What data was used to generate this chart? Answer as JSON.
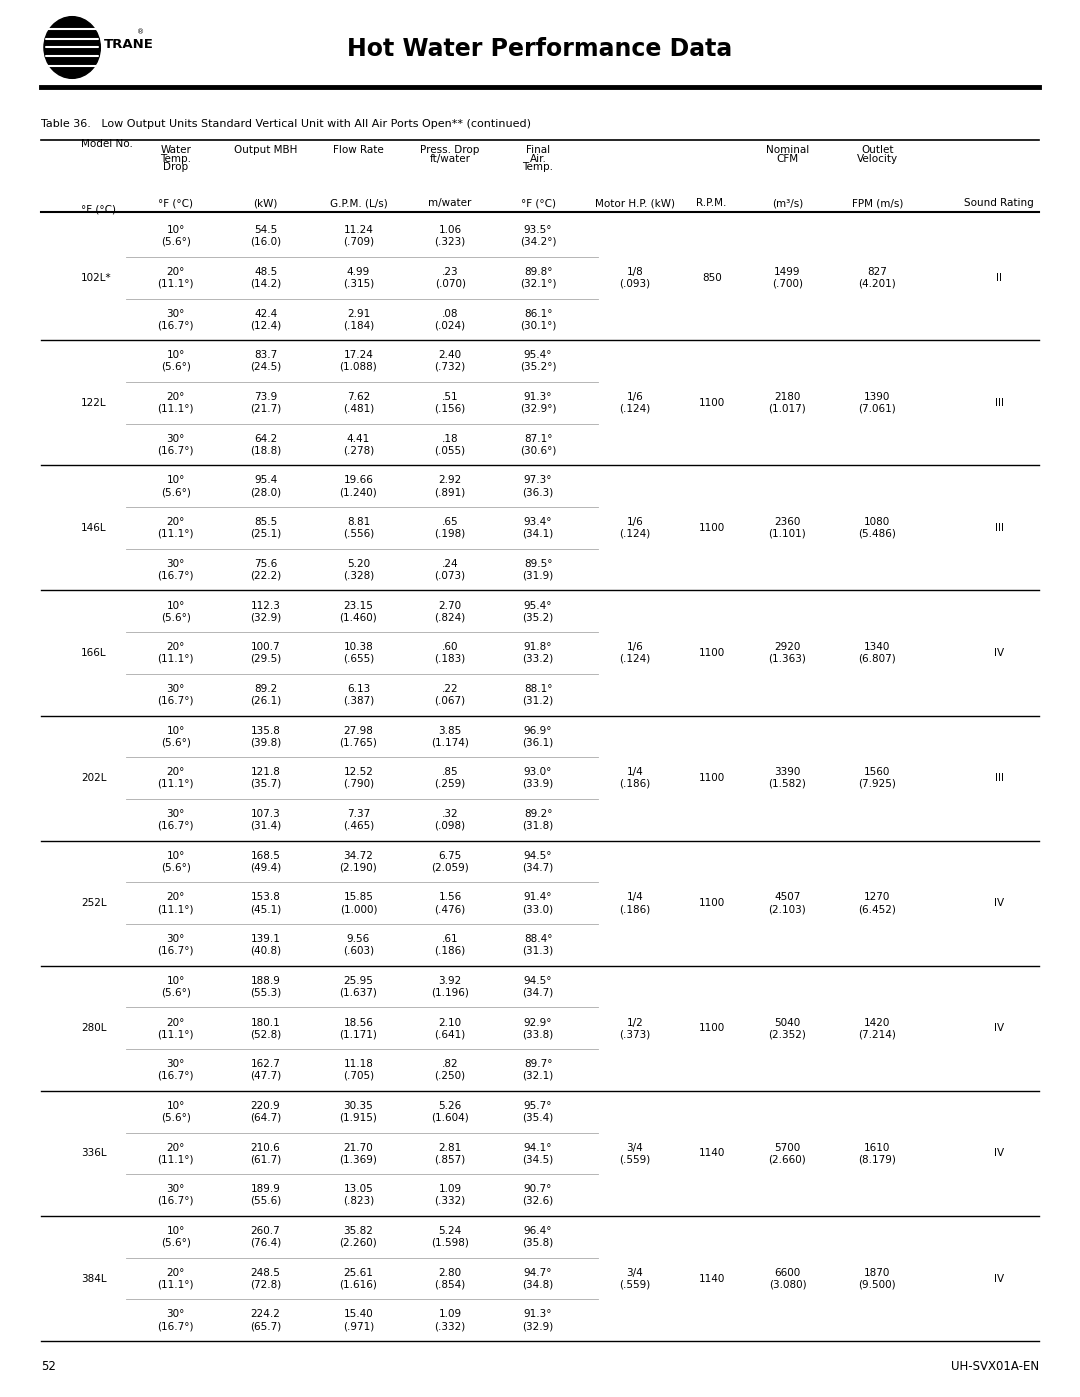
{
  "title": "Hot Water Performance Data",
  "table_title": "Table 36.   Low Output Units Standard Vertical Unit with All Air Ports Open** (continued)",
  "page_num": "52",
  "doc_ref": "UH-SVX01A-EN",
  "rows": [
    {
      "model": "102L*",
      "motor_hp": "1/8\n(.093)",
      "rpm": "850",
      "cfm": "1499\n(.700)",
      "velocity": "827\n(4.201)",
      "sound": "II",
      "sub_rows": [
        {
          "drop": "10°\n(5.6°)",
          "output": "54.5\n(16.0)",
          "flow": "11.24\n(.709)",
          "press": "1.06\n(.323)",
          "final_temp": "93.5°\n(34.2°)"
        },
        {
          "drop": "20°\n(11.1°)",
          "output": "48.5\n(14.2)",
          "flow": "4.99\n(.315)",
          "press": ".23\n(.070)",
          "final_temp": "89.8°\n(32.1°)"
        },
        {
          "drop": "30°\n(16.7°)",
          "output": "42.4\n(12.4)",
          "flow": "2.91\n(.184)",
          "press": ".08\n(.024)",
          "final_temp": "86.1°\n(30.1°)"
        }
      ]
    },
    {
      "model": "122L",
      "motor_hp": "1/6\n(.124)",
      "rpm": "1100",
      "cfm": "2180\n(1.017)",
      "velocity": "1390\n(7.061)",
      "sound": "III",
      "sub_rows": [
        {
          "drop": "10°\n(5.6°)",
          "output": "83.7\n(24.5)",
          "flow": "17.24\n(1.088)",
          "press": "2.40\n(.732)",
          "final_temp": "95.4°\n(35.2°)"
        },
        {
          "drop": "20°\n(11.1°)",
          "output": "73.9\n(21.7)",
          "flow": "7.62\n(.481)",
          "press": ".51\n(.156)",
          "final_temp": "91.3°\n(32.9°)"
        },
        {
          "drop": "30°\n(16.7°)",
          "output": "64.2\n(18.8)",
          "flow": "4.41\n(.278)",
          "press": ".18\n(.055)",
          "final_temp": "87.1°\n(30.6°)"
        }
      ]
    },
    {
      "model": "146L",
      "motor_hp": "1/6\n(.124)",
      "rpm": "1100",
      "cfm": "2360\n(1.101)",
      "velocity": "1080\n(5.486)",
      "sound": "III",
      "sub_rows": [
        {
          "drop": "10°\n(5.6°)",
          "output": "95.4\n(28.0)",
          "flow": "19.66\n(1.240)",
          "press": "2.92\n(.891)",
          "final_temp": "97.3°\n(36.3)"
        },
        {
          "drop": "20°\n(11.1°)",
          "output": "85.5\n(25.1)",
          "flow": "8.81\n(.556)",
          "press": ".65\n(.198)",
          "final_temp": "93.4°\n(34.1)"
        },
        {
          "drop": "30°\n(16.7°)",
          "output": "75.6\n(22.2)",
          "flow": "5.20\n(.328)",
          "press": ".24\n(.073)",
          "final_temp": "89.5°\n(31.9)"
        }
      ]
    },
    {
      "model": "166L",
      "motor_hp": "1/6\n(.124)",
      "rpm": "1100",
      "cfm": "2920\n(1.363)",
      "velocity": "1340\n(6.807)",
      "sound": "IV",
      "sub_rows": [
        {
          "drop": "10°\n(5.6°)",
          "output": "112.3\n(32.9)",
          "flow": "23.15\n(1.460)",
          "press": "2.70\n(.824)",
          "final_temp": "95.4°\n(35.2)"
        },
        {
          "drop": "20°\n(11.1°)",
          "output": "100.7\n(29.5)",
          "flow": "10.38\n(.655)",
          "press": ".60\n(.183)",
          "final_temp": "91.8°\n(33.2)"
        },
        {
          "drop": "30°\n(16.7°)",
          "output": "89.2\n(26.1)",
          "flow": "6.13\n(.387)",
          "press": ".22\n(.067)",
          "final_temp": "88.1°\n(31.2)"
        }
      ]
    },
    {
      "model": "202L",
      "motor_hp": "1/4\n(.186)",
      "rpm": "1100",
      "cfm": "3390\n(1.582)",
      "velocity": "1560\n(7.925)",
      "sound": "III",
      "sub_rows": [
        {
          "drop": "10°\n(5.6°)",
          "output": "135.8\n(39.8)",
          "flow": "27.98\n(1.765)",
          "press": "3.85\n(1.174)",
          "final_temp": "96.9°\n(36.1)"
        },
        {
          "drop": "20°\n(11.1°)",
          "output": "121.8\n(35.7)",
          "flow": "12.52\n(.790)",
          "press": ".85\n(.259)",
          "final_temp": "93.0°\n(33.9)"
        },
        {
          "drop": "30°\n(16.7°)",
          "output": "107.3\n(31.4)",
          "flow": "7.37\n(.465)",
          "press": ".32\n(.098)",
          "final_temp": "89.2°\n(31.8)"
        }
      ]
    },
    {
      "model": "252L",
      "motor_hp": "1/4\n(.186)",
      "rpm": "1100",
      "cfm": "4507\n(2.103)",
      "velocity": "1270\n(6.452)",
      "sound": "IV",
      "sub_rows": [
        {
          "drop": "10°\n(5.6°)",
          "output": "168.5\n(49.4)",
          "flow": "34.72\n(2.190)",
          "press": "6.75\n(2.059)",
          "final_temp": "94.5°\n(34.7)"
        },
        {
          "drop": "20°\n(11.1°)",
          "output": "153.8\n(45.1)",
          "flow": "15.85\n(1.000)",
          "press": "1.56\n(.476)",
          "final_temp": "91.4°\n(33.0)"
        },
        {
          "drop": "30°\n(16.7°)",
          "output": "139.1\n(40.8)",
          "flow": "9.56\n(.603)",
          "press": ".61\n(.186)",
          "final_temp": "88.4°\n(31.3)"
        }
      ]
    },
    {
      "model": "280L",
      "motor_hp": "1/2\n(.373)",
      "rpm": "1100",
      "cfm": "5040\n(2.352)",
      "velocity": "1420\n(7.214)",
      "sound": "IV",
      "sub_rows": [
        {
          "drop": "10°\n(5.6°)",
          "output": "188.9\n(55.3)",
          "flow": "25.95\n(1.637)",
          "press": "3.92\n(1.196)",
          "final_temp": "94.5°\n(34.7)"
        },
        {
          "drop": "20°\n(11.1°)",
          "output": "180.1\n(52.8)",
          "flow": "18.56\n(1.171)",
          "press": "2.10\n(.641)",
          "final_temp": "92.9°\n(33.8)"
        },
        {
          "drop": "30°\n(16.7°)",
          "output": "162.7\n(47.7)",
          "flow": "11.18\n(.705)",
          "press": ".82\n(.250)",
          "final_temp": "89.7°\n(32.1)"
        }
      ]
    },
    {
      "model": "336L",
      "motor_hp": "3/4\n(.559)",
      "rpm": "1140",
      "cfm": "5700\n(2.660)",
      "velocity": "1610\n(8.179)",
      "sound": "IV",
      "sub_rows": [
        {
          "drop": "10°\n(5.6°)",
          "output": "220.9\n(64.7)",
          "flow": "30.35\n(1.915)",
          "press": "5.26\n(1.604)",
          "final_temp": "95.7°\n(35.4)"
        },
        {
          "drop": "20°\n(11.1°)",
          "output": "210.6\n(61.7)",
          "flow": "21.70\n(1.369)",
          "press": "2.81\n(.857)",
          "final_temp": "94.1°\n(34.5)"
        },
        {
          "drop": "30°\n(16.7°)",
          "output": "189.9\n(55.6)",
          "flow": "13.05\n(.823)",
          "press": "1.09\n(.332)",
          "final_temp": "90.7°\n(32.6)"
        }
      ]
    },
    {
      "model": "384L",
      "motor_hp": "3/4\n(.559)",
      "rpm": "1140",
      "cfm": "6600\n(3.080)",
      "velocity": "1870\n(9.500)",
      "sound": "IV",
      "sub_rows": [
        {
          "drop": "10°\n(5.6°)",
          "output": "260.7\n(76.4)",
          "flow": "35.82\n(2.260)",
          "press": "5.24\n(1.598)",
          "final_temp": "96.4°\n(35.8)"
        },
        {
          "drop": "20°\n(11.1°)",
          "output": "248.5\n(72.8)",
          "flow": "25.61\n(1.616)",
          "press": "2.80\n(.854)",
          "final_temp": "94.7°\n(34.8)"
        },
        {
          "drop": "30°\n(16.7°)",
          "output": "224.2\n(65.7)",
          "flow": "15.40\n(.971)",
          "press": "1.09\n(.332)",
          "final_temp": "91.3°\n(32.9)"
        }
      ]
    }
  ]
}
